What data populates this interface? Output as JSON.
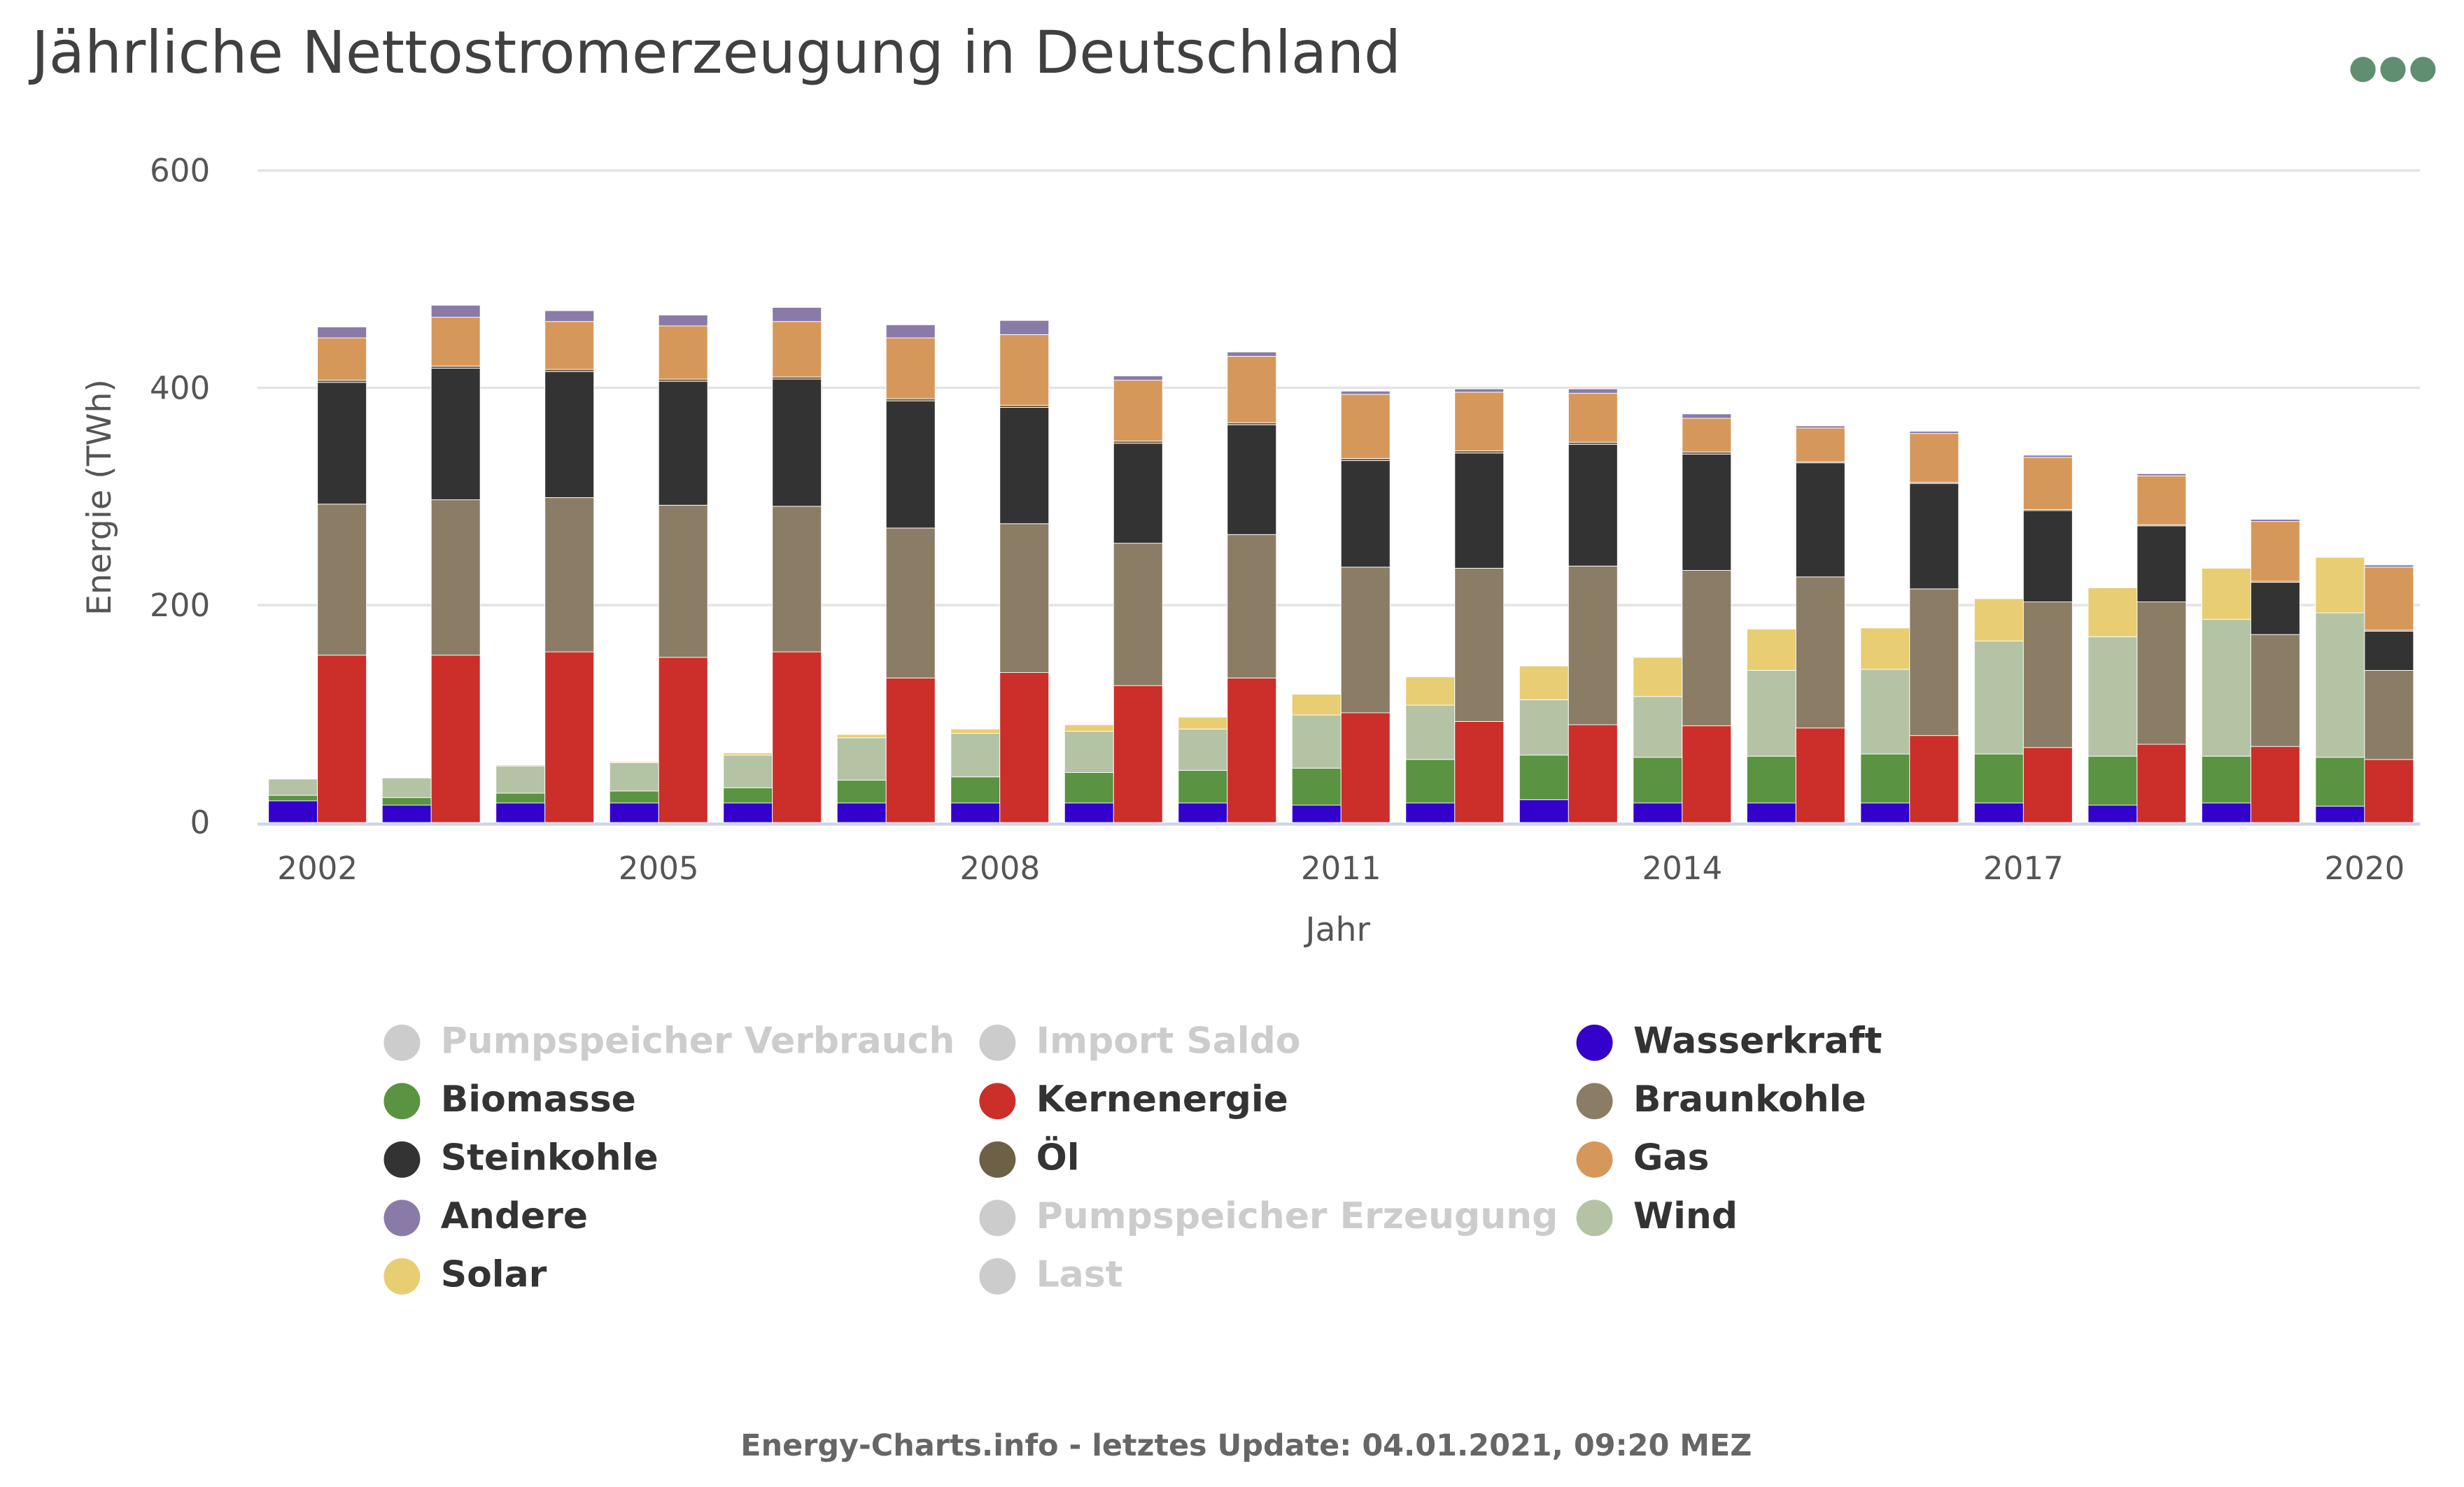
{
  "header": {
    "title": "Jährliche Nettostromerzeugung in Deutschland",
    "menu_icon": "three-dots-menu-icon"
  },
  "footer": {
    "text": "Energy-Charts.info - letztes Update: 04.01.2021, 09:20 MEZ"
  },
  "chart_data": {
    "type": "bar",
    "stacked": true,
    "title": "Jährliche Nettostromerzeugung in Deutschland",
    "xlabel": "Jahr",
    "ylabel": "Energie (TWh)",
    "ylim": [
      0,
      600
    ],
    "yticks": [
      "0",
      "200",
      "400",
      "600"
    ],
    "xticks": [
      "2002",
      "2005",
      "2008",
      "2011",
      "2014",
      "2017",
      "2020"
    ],
    "grid": true,
    "legend_position": "bottom",
    "categories": [
      2002,
      2003,
      2004,
      2005,
      2006,
      2007,
      2008,
      2009,
      2010,
      2011,
      2012,
      2013,
      2014,
      2015,
      2016,
      2017,
      2018,
      2019,
      2020
    ],
    "stacks": [
      "erneuerbar",
      "konventionell"
    ],
    "series": [
      {
        "name": "Wasserkraft",
        "color": "#3300cc",
        "stack": "erneuerbar",
        "values": [
          20,
          16,
          18,
          18,
          18,
          18,
          18,
          18,
          18,
          16,
          18,
          21,
          18,
          18,
          18,
          18,
          16,
          18,
          15
        ]
      },
      {
        "name": "Biomasse",
        "color": "#5a9341",
        "stack": "erneuerbar",
        "values": [
          5,
          7,
          9,
          11,
          14,
          21,
          24,
          28,
          30,
          34,
          40,
          41,
          42,
          43,
          45,
          45,
          45,
          43,
          45
        ]
      },
      {
        "name": "Wind",
        "color": "#b5c3a5",
        "stack": "erneuerbar",
        "values": [
          15,
          18,
          25,
          26,
          30,
          39,
          40,
          38,
          38,
          49,
          50,
          51,
          56,
          79,
          78,
          104,
          110,
          126,
          133
        ]
      },
      {
        "name": "Solar",
        "color": "#e8cd73",
        "stack": "erneuerbar",
        "values": [
          0,
          0,
          1,
          1,
          2,
          3,
          4,
          6,
          11,
          19,
          26,
          31,
          36,
          38,
          38,
          39,
          45,
          47,
          51
        ]
      },
      {
        "name": "Kernenergie",
        "color": "#cc2e2a",
        "stack": "konventionell",
        "values": [
          154,
          154,
          157,
          152,
          157,
          133,
          138,
          126,
          133,
          101,
          93,
          90,
          89,
          87,
          80,
          69,
          72,
          70,
          58
        ]
      },
      {
        "name": "Braunkohle",
        "color": "#8b7c65",
        "stack": "konventionell",
        "values": [
          139,
          143,
          142,
          140,
          134,
          138,
          137,
          131,
          132,
          134,
          141,
          146,
          143,
          139,
          135,
          134,
          131,
          103,
          82
        ]
      },
      {
        "name": "Steinkohle",
        "color": "#333333",
        "stack": "konventionell",
        "values": [
          112,
          121,
          116,
          114,
          117,
          117,
          107,
          92,
          101,
          98,
          106,
          112,
          107,
          105,
          97,
          84,
          70,
          48,
          36
        ]
      },
      {
        "name": "Öl",
        "color": "#6e5f47",
        "stack": "konventionell",
        "values": [
          2,
          2,
          2,
          2,
          2,
          2,
          2,
          2,
          2,
          2,
          2,
          2,
          2,
          1,
          1,
          1,
          1,
          1,
          1
        ]
      },
      {
        "name": "Gas",
        "color": "#d6985a",
        "stack": "konventionell",
        "values": [
          39,
          45,
          44,
          49,
          51,
          56,
          65,
          56,
          61,
          59,
          54,
          45,
          31,
          31,
          45,
          48,
          45,
          55,
          58
        ]
      },
      {
        "name": "Andere",
        "color": "#8a7aa8",
        "stack": "konventionell",
        "values": [
          10,
          11,
          10,
          10,
          13,
          12,
          13,
          4,
          4,
          3,
          3,
          4,
          4,
          2,
          2,
          2,
          2,
          2,
          2
        ]
      }
    ],
    "legend": [
      {
        "label": "Pumpspeicher Verbrauch",
        "color": "#cccccc",
        "active": false
      },
      {
        "label": "Import Saldo",
        "color": "#cccccc",
        "active": false
      },
      {
        "label": "Wasserkraft",
        "color": "#3300cc",
        "active": true
      },
      {
        "label": "Biomasse",
        "color": "#5a9341",
        "active": true
      },
      {
        "label": "Kernenergie",
        "color": "#cc2e2a",
        "active": true
      },
      {
        "label": "Braunkohle",
        "color": "#8b7c65",
        "active": true
      },
      {
        "label": "Steinkohle",
        "color": "#333333",
        "active": true
      },
      {
        "label": "Öl",
        "color": "#6e5f47",
        "active": true
      },
      {
        "label": "Gas",
        "color": "#d6985a",
        "active": true
      },
      {
        "label": "Andere",
        "color": "#8a7aa8",
        "active": true
      },
      {
        "label": "Pumpspeicher Erzeugung",
        "color": "#cccccc",
        "active": false
      },
      {
        "label": "Wind",
        "color": "#b5c3a5",
        "active": true
      },
      {
        "label": "Solar",
        "color": "#e8cd73",
        "active": true
      },
      {
        "label": "Last",
        "color": "#cccccc",
        "active": false
      }
    ]
  }
}
